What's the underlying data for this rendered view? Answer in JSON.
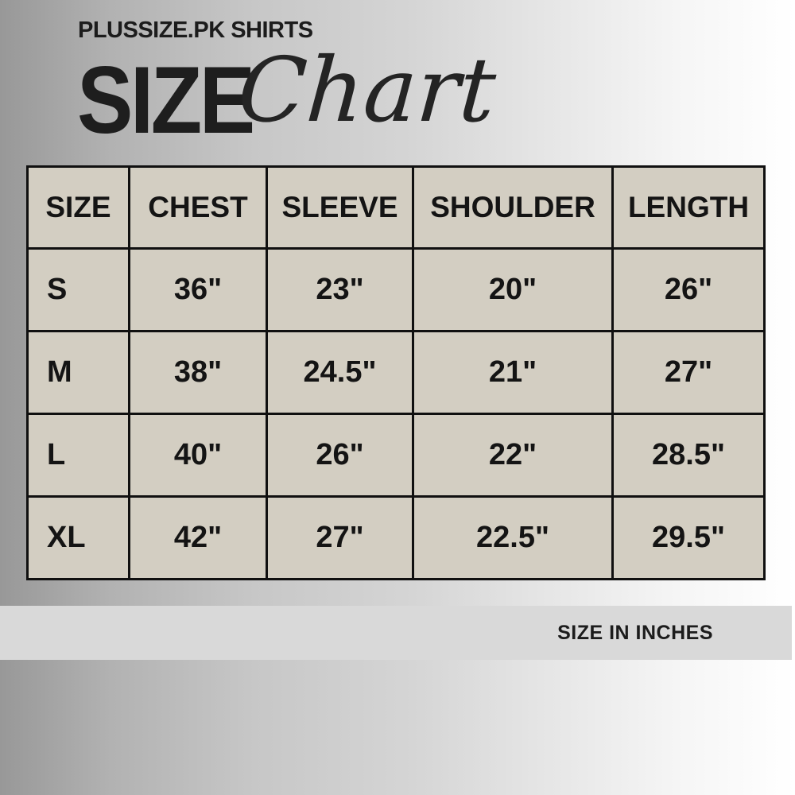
{
  "brand": "PLUSSIZE.PK SHIRTS",
  "title": {
    "main": "SIZE",
    "script": "Chart"
  },
  "footer": {
    "note": "SIZE IN INCHES"
  },
  "chart_data": {
    "type": "table",
    "title": "SIZE Chart",
    "subtitle": "PLUSSIZE.PK SHIRTS",
    "unit_note": "SIZE IN INCHES",
    "columns": [
      "SIZE",
      "CHEST",
      "SLEEVE",
      "SHOULDER",
      "LENGTH"
    ],
    "rows_numeric": [
      {
        "size": "S",
        "chest": 36,
        "sleeve": 23,
        "shoulder": 20,
        "length": 26
      },
      {
        "size": "M",
        "chest": 38,
        "sleeve": 24.5,
        "shoulder": 21,
        "length": 27
      },
      {
        "size": "L",
        "chest": 40,
        "sleeve": 26,
        "shoulder": 22,
        "length": 28.5
      },
      {
        "size": "XL",
        "chest": 42,
        "sleeve": 27,
        "shoulder": 22.5,
        "length": 29.5
      }
    ]
  },
  "table": {
    "headers": [
      "SIZE",
      "CHEST",
      "SLEEVE",
      "SHOULDER",
      "LENGTH"
    ],
    "rows": [
      [
        "S",
        "36\"",
        "23\"",
        "20\"",
        "26\""
      ],
      [
        "M",
        "38\"",
        "24.5\"",
        "21\"",
        "27\""
      ],
      [
        "L",
        "40\"",
        "26\"",
        "22\"",
        "28.5\""
      ],
      [
        "XL",
        "42\"",
        "27\"",
        "22.5\"",
        "29.5\""
      ]
    ]
  },
  "colors": {
    "cell_bg": "#d3cec2",
    "table_border": "#101010",
    "footer_band_bg": "#d9d9d9",
    "text": "#1a1a1a",
    "background_gradient_left": "#989898",
    "background_gradient_right": "#ffffff"
  }
}
